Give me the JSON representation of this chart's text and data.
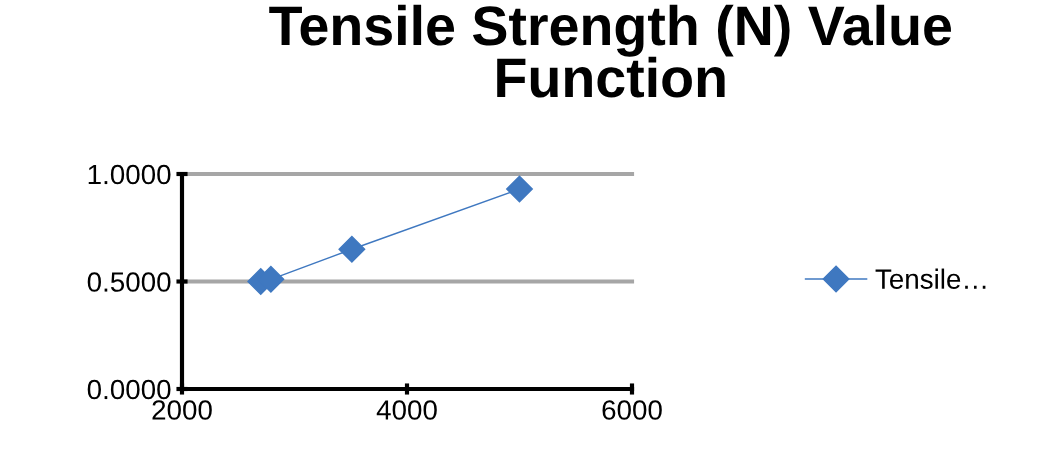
{
  "chart_data": {
    "type": "line",
    "title": "Tensile Strength (N) Value Function",
    "series": [
      {
        "name": "Tensile…",
        "color": "#3f78c0",
        "x": [
          2700,
          2790,
          3510,
          5000
        ],
        "values": [
          0.5,
          0.51,
          0.65,
          0.93
        ]
      }
    ],
    "xlim": [
      2000,
      6000
    ],
    "xticks": [
      2000,
      4000,
      6000
    ],
    "ylim": [
      0,
      1
    ],
    "yticks": [
      {
        "value": 0,
        "label": "0.0000"
      },
      {
        "value": 0.5,
        "label": "0.5000"
      },
      {
        "value": 1,
        "label": "1.0000"
      }
    ],
    "grid": "y",
    "legend": "right",
    "marker": "diamond",
    "line_style": "solid"
  }
}
